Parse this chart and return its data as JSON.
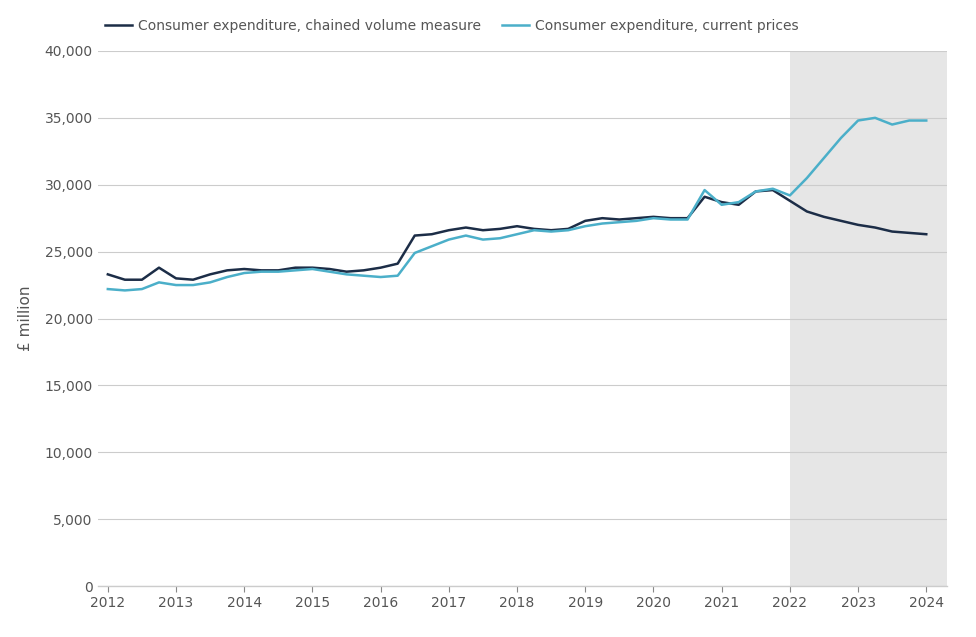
{
  "ylabel": "£ million",
  "legend_chained": "Consumer expenditure, chained volume measure",
  "legend_prices": "Consumer expenditure, current prices",
  "background_color": "#ffffff",
  "shaded_region_color": "#e6e6e6",
  "shaded_start": 2022.0,
  "shaded_end": 2024.3,
  "ylim": [
    0,
    40000
  ],
  "yticks": [
    0,
    5000,
    10000,
    15000,
    20000,
    25000,
    30000,
    35000,
    40000
  ],
  "color_chained": "#1c2d47",
  "color_prices": "#4bafc9",
  "xlim_start": 2011.85,
  "xlim_end": 2024.3,
  "quarters": [
    2012.0,
    2012.25,
    2012.5,
    2012.75,
    2013.0,
    2013.25,
    2013.5,
    2013.75,
    2014.0,
    2014.25,
    2014.5,
    2014.75,
    2015.0,
    2015.25,
    2015.5,
    2015.75,
    2016.0,
    2016.25,
    2016.5,
    2016.75,
    2017.0,
    2017.25,
    2017.5,
    2017.75,
    2018.0,
    2018.25,
    2018.5,
    2018.75,
    2019.0,
    2019.25,
    2019.5,
    2019.75,
    2020.0,
    2020.25,
    2020.5,
    2020.75,
    2021.0,
    2021.25,
    2021.5,
    2021.75,
    2022.0,
    2022.25,
    2022.5,
    2022.75,
    2023.0,
    2023.25,
    2023.5,
    2023.75,
    2024.0
  ],
  "chained": [
    23300,
    22900,
    22900,
    23800,
    23000,
    22900,
    23300,
    23600,
    23700,
    23600,
    23600,
    23800,
    23800,
    23700,
    23500,
    23600,
    23800,
    24100,
    26200,
    26300,
    26600,
    26800,
    26600,
    26700,
    26900,
    26700,
    26600,
    26700,
    27300,
    27500,
    27400,
    27500,
    27600,
    27500,
    27500,
    29100,
    28700,
    28500,
    29500,
    29600,
    28800,
    28000,
    27600,
    27300,
    27000,
    26800,
    26500,
    26400,
    26300
  ],
  "prices": [
    22200,
    22100,
    22200,
    22700,
    22500,
    22500,
    22700,
    23100,
    23400,
    23500,
    23500,
    23600,
    23700,
    23500,
    23300,
    23200,
    23100,
    23200,
    24900,
    25400,
    25900,
    26200,
    25900,
    26000,
    26300,
    26600,
    26500,
    26600,
    26900,
    27100,
    27200,
    27300,
    27500,
    27400,
    27400,
    29600,
    28500,
    28700,
    29500,
    29700,
    29200,
    30500,
    32000,
    33500,
    34800,
    35000,
    34500,
    34800,
    34800
  ],
  "xtick_positions": [
    2012,
    2013,
    2014,
    2015,
    2016,
    2017,
    2018,
    2019,
    2020,
    2021,
    2022,
    2023,
    2024
  ],
  "grid_color": "#cccccc",
  "tick_color": "#888888",
  "label_color": "#555555",
  "spine_color": "#cccccc",
  "linewidth": 1.8,
  "fontsize_ticks": 10,
  "fontsize_ylabel": 11,
  "fontsize_legend": 10
}
